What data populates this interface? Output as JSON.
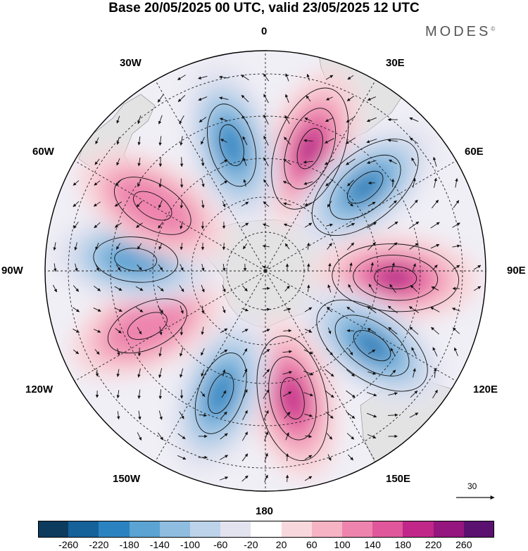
{
  "title": "Base 20/05/2025 00 UTC, valid 23/05/2025 12 UTC",
  "brand": "MODES",
  "brand_mark": "©",
  "longitude_labels": {
    "lon_0": "0",
    "lon_30e": "30E",
    "lon_60e": "60E",
    "lon_90e": "90E",
    "lon_120e": "120E",
    "lon_150e": "150E",
    "lon_180": "180",
    "lon_150w": "150W",
    "lon_120w": "120W",
    "lon_90w": "90W",
    "lon_60w": "60W",
    "lon_30w": "30W"
  },
  "vector_scale_label": "30",
  "colorbar": {
    "colors": [
      "#0d3b5e",
      "#15619a",
      "#2b82c0",
      "#5aa3d2",
      "#8fbde0",
      "#bcd3ea",
      "#e3e3f0",
      "#ffffff",
      "#f8d8dc",
      "#f5b3c4",
      "#ee84ad",
      "#e0579c",
      "#c02789",
      "#94167e",
      "#5a1170"
    ],
    "tick_labels": [
      "-260",
      "-220",
      "-180",
      "-140",
      "-100",
      "-60",
      "-20",
      "20",
      "60",
      "100",
      "140",
      "180",
      "220",
      "260"
    ]
  },
  "anomaly_centers": [
    {
      "lon": 20,
      "value": 220
    },
    {
      "lon": 50,
      "value": -260
    },
    {
      "lon": 93,
      "value": 240
    },
    {
      "lon": 125,
      "value": -240
    },
    {
      "lon": 168,
      "value": 200
    },
    {
      "lon": -160,
      "value": -180
    },
    {
      "lon": -115,
      "value": 120
    },
    {
      "lon": -85,
      "value": -140
    },
    {
      "lon": -60,
      "value": 100
    },
    {
      "lon": -15,
      "value": -180
    }
  ],
  "colors": {
    "land": "#e1e1e1",
    "grid": "#222222",
    "arrow": "#111111"
  }
}
